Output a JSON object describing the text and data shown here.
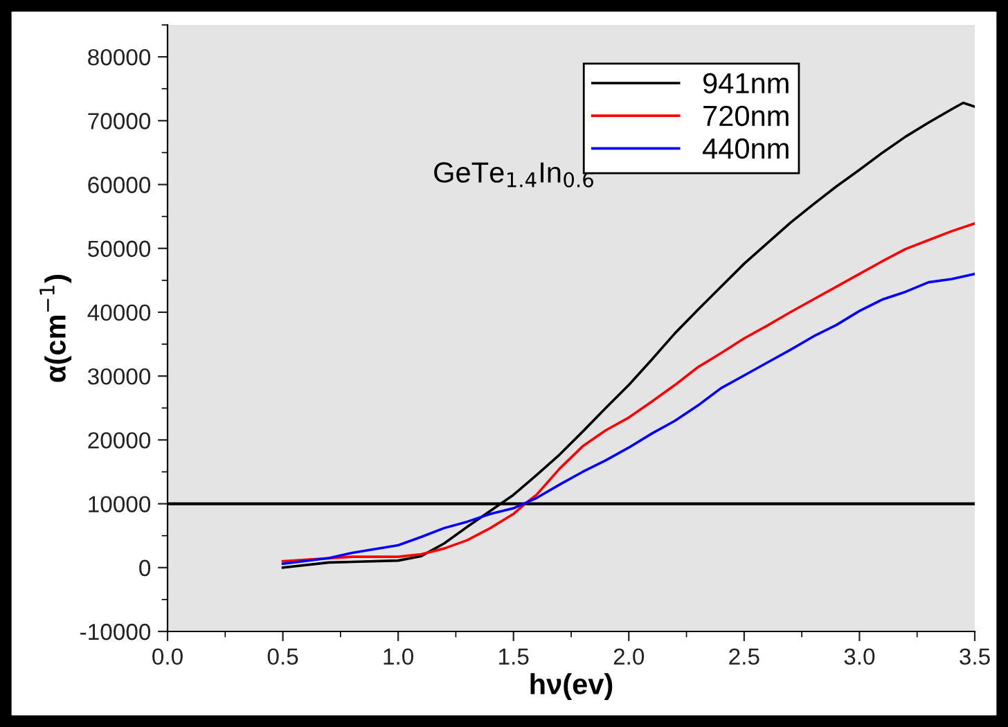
{
  "chart_data": {
    "type": "line",
    "xlabel": "hν(ev)",
    "ylabel": "α(cm$^{−1}$)",
    "annotations": [
      "GeTe$_{1.4}$In$_{0.6}$"
    ],
    "xlim": [
      0,
      3.5
    ],
    "xticks": [
      {
        "value": 0,
        "label": "0.0"
      },
      0.5,
      {
        "value": 1,
        "label": "1.0"
      },
      1.5,
      {
        "value": 2,
        "label": "2.0"
      },
      2.5,
      {
        "value": 3,
        "label": "3.0"
      },
      3.5
    ],
    "ylim": [
      -10000,
      85000
    ],
    "yticks": [
      -10000,
      0,
      10000,
      20000,
      30000,
      40000,
      50000,
      60000,
      70000,
      80000
    ],
    "legend": "top right",
    "grid": false,
    "ref_lines": [
      {
        "axis": "y",
        "value": 10000,
        "color": "#000000"
      }
    ],
    "series": [
      {
        "name": "941nm",
        "color": "#000000",
        "x": [
          0.5,
          0.7,
          1.0,
          1.1,
          1.2,
          1.3,
          1.4,
          1.5,
          1.6,
          1.7,
          1.8,
          1.9,
          2.0,
          2.1,
          2.2,
          2.3,
          2.4,
          2.5,
          2.6,
          2.7,
          2.8,
          2.9,
          3.0,
          3.1,
          3.2,
          3.3,
          3.4,
          3.45,
          3.5
        ],
        "values": [
          0,
          800,
          1100,
          1800,
          3800,
          6400,
          8900,
          11400,
          14500,
          17700,
          21300,
          25000,
          28600,
          32600,
          36700,
          40400,
          44000,
          47600,
          50800,
          54000,
          56900,
          59700,
          62300,
          65000,
          67500,
          69700,
          71800,
          72800,
          72200
        ]
      },
      {
        "name": "720nm",
        "color": "#ff0000",
        "x": [
          0.5,
          0.8,
          1.0,
          1.1,
          1.2,
          1.3,
          1.4,
          1.5,
          1.55,
          1.6,
          1.7,
          1.8,
          1.9,
          2.0,
          2.1,
          2.2,
          2.3,
          2.4,
          2.5,
          2.6,
          2.7,
          2.8,
          2.9,
          3.0,
          3.1,
          3.2,
          3.3,
          3.4,
          3.5
        ],
        "values": [
          1000,
          1700,
          1700,
          2100,
          3000,
          4300,
          6200,
          8400,
          10000,
          11400,
          15500,
          19000,
          21500,
          23500,
          26000,
          28600,
          31400,
          33600,
          35900,
          37900,
          40000,
          42000,
          44000,
          46000,
          48000,
          49900,
          51300,
          52700,
          53900
        ]
      },
      {
        "name": "440nm",
        "color": "#0000ff",
        "x": [
          0.5,
          0.7,
          0.8,
          1.0,
          1.1,
          1.2,
          1.3,
          1.4,
          1.5,
          1.6,
          1.7,
          1.8,
          1.9,
          2.0,
          2.1,
          2.2,
          2.3,
          2.4,
          2.5,
          2.6,
          2.7,
          2.8,
          2.9,
          3.0,
          3.1,
          3.2,
          3.3,
          3.4,
          3.5
        ],
        "values": [
          600,
          1500,
          2300,
          3500,
          4800,
          6200,
          7200,
          8400,
          9300,
          10900,
          13000,
          15000,
          16800,
          18800,
          21000,
          23000,
          25400,
          28100,
          30100,
          32100,
          34100,
          36200,
          38000,
          40200,
          42000,
          43200,
          44700,
          45200,
          46000
        ]
      }
    ]
  }
}
